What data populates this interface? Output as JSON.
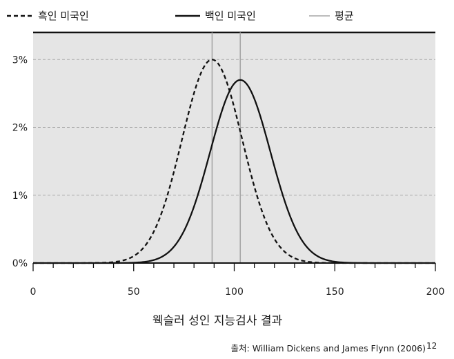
{
  "chart_data": {
    "type": "line",
    "xlabel": "웩슬러 성인 지능검사 결과",
    "xlim": [
      0,
      200
    ],
    "ylim": [
      0,
      3.4
    ],
    "x_ticks": [
      0,
      50,
      100,
      150,
      200
    ],
    "x_tick_labels": [
      "0",
      "50",
      "100",
      "150",
      "200"
    ],
    "y_ticks": [
      0,
      1,
      2,
      3
    ],
    "y_tick_labels": [
      "0%",
      "1%",
      "2%",
      "3%"
    ],
    "grid": "horizontal dashed",
    "background": "#e5e5e5",
    "legend": {
      "placement": "top",
      "entries": [
        {
          "label": "흑인 미국인",
          "style": "dashed",
          "color": "#111111"
        },
        {
          "label": "백인 미국인",
          "style": "solid",
          "color": "#111111"
        },
        {
          "label": "평균",
          "style": "solid-thin",
          "color": "#a6a6a6"
        }
      ]
    },
    "series": [
      {
        "name": "흑인 미국인",
        "distribution": "normal",
        "mean": 89,
        "peak": 3.0,
        "style": "dashed"
      },
      {
        "name": "백인 미국인",
        "distribution": "normal",
        "mean": 103,
        "peak": 2.7,
        "style": "solid"
      }
    ],
    "mean_lines": [
      89,
      103
    ],
    "source": "출처: William Dickens and James Flynn (2006)",
    "footnote_mark": "12"
  }
}
